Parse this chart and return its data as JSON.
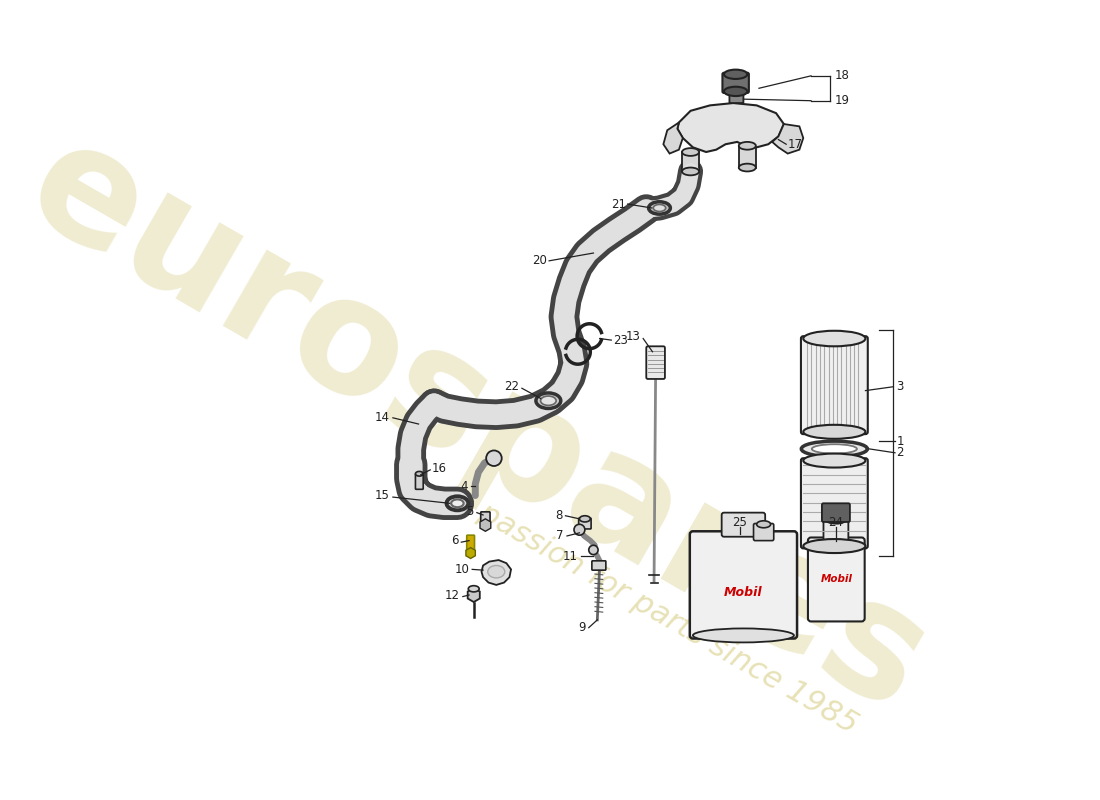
{
  "bg_color": "#ffffff",
  "line_color": "#222222",
  "watermark_color": "#d4c87a",
  "watermark_text1": "eurospares",
  "watermark_text2": "a passion for parts since 1985",
  "hose_fill": "#e0e0e0",
  "hose_edge": "#444444",
  "label_fontsize": 8.5
}
